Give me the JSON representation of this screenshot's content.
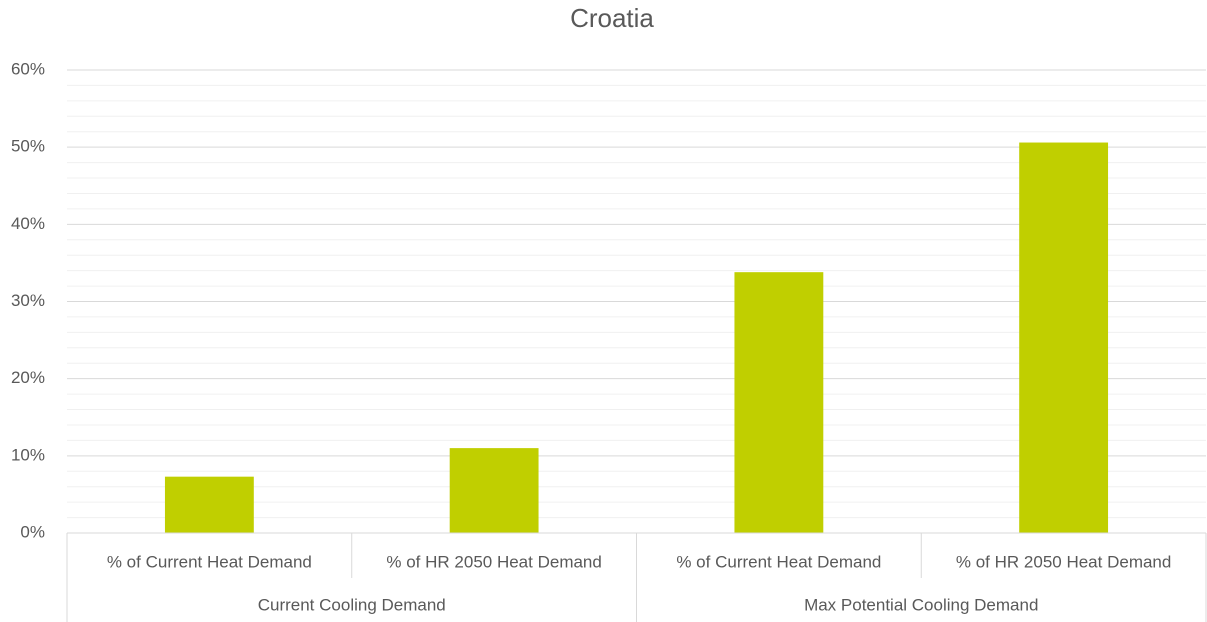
{
  "chart_data": {
    "type": "bar",
    "title": "Croatia",
    "groups": [
      {
        "name": "Current Cooling Demand",
        "categories": [
          "% of Current Heat Demand",
          "% of HR 2050 Heat Demand"
        ]
      },
      {
        "name": "Max Potential Cooling Demand",
        "categories": [
          "% of Current Heat Demand",
          "% of HR 2050 Heat Demand"
        ]
      }
    ],
    "values": [
      7.3,
      11,
      33.8,
      50.6
    ],
    "color": "#c0cf00",
    "ylim": [
      0,
      60
    ],
    "yticks": [
      {
        "value": 0,
        "label": "0%"
      },
      {
        "value": 10,
        "label": "10%"
      },
      {
        "value": 20,
        "label": "20%"
      },
      {
        "value": 30,
        "label": "30%"
      },
      {
        "value": 40,
        "label": "40%"
      },
      {
        "value": 50,
        "label": "50%"
      },
      {
        "value": 60,
        "label": "60%"
      }
    ],
    "minor_yticks": [
      2,
      4,
      6,
      8,
      12,
      14,
      16,
      18,
      22,
      24,
      26,
      28,
      32,
      34,
      36,
      38,
      42,
      44,
      46,
      48,
      52,
      54,
      56,
      58
    ],
    "grid": true
  }
}
